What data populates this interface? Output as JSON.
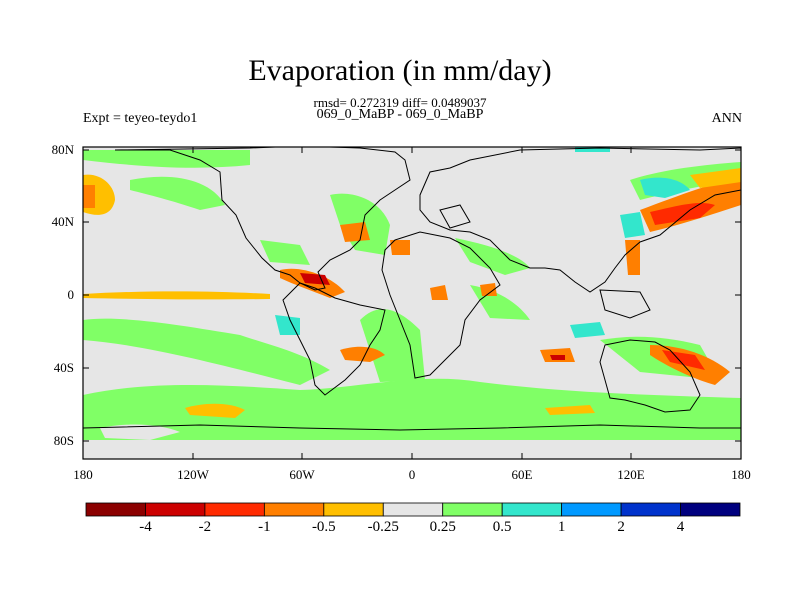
{
  "title": "Evaporation (in mm/day)",
  "stats_line": "rmsd= 0.272319 diff= 0.0489037",
  "cases_line": "069_0_MaBP - 069_0_MaBP",
  "left_label": "Expt = teyeo-teydo1",
  "right_label": "ANN",
  "lat_labels": [
    "80N",
    "40N",
    "0",
    "40S",
    "80S"
  ],
  "lon_labels": [
    "180",
    "120W",
    "60W",
    "0",
    "60E",
    "120E",
    "180"
  ],
  "colorbar": {
    "labels": [
      "-4",
      "-2",
      "-1",
      "-0.5",
      "-0.25",
      "0.25",
      "0.5",
      "1",
      "2",
      "4"
    ],
    "colors": [
      "#8b0000",
      "#cc0000",
      "#ff2a00",
      "#ff7f00",
      "#ffbf00",
      "#e6e6e6",
      "#80ff66",
      "#33e6cc",
      "#0099ff",
      "#0033cc",
      "#00007f"
    ]
  }
}
